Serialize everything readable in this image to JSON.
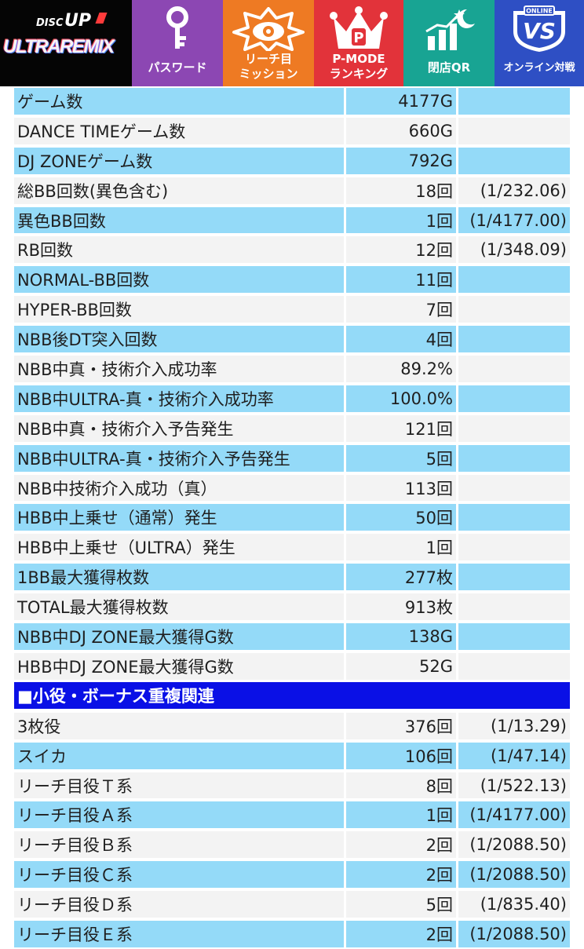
{
  "header": {
    "logo": {
      "top_text": "DISC",
      "top_text_2": "UP",
      "main_text": "ULTRAREMIX"
    },
    "nav": [
      {
        "label": "パスワード",
        "icon": "key-icon",
        "color": "#8c47b3"
      },
      {
        "label": "リーチ目\nミッション",
        "icon": "mission-badge-icon",
        "color": "#ee7a23"
      },
      {
        "label": "P-MODE\nランキング",
        "icon": "crown-icon",
        "color": "#e2333a"
      },
      {
        "label": "閉店QR",
        "icon": "chart-moon-icon",
        "color": "#18a493"
      },
      {
        "label": "オンライン対戦",
        "icon": "vs-shield-icon",
        "icon_text": "VS",
        "icon_caption": "ONLINE",
        "color": "#2e4fc4"
      }
    ]
  },
  "stats": [
    {
      "label": "ゲーム数",
      "value": "4177G",
      "prob": ""
    },
    {
      "label": "DANCE TIMEゲーム数",
      "value": "660G",
      "prob": ""
    },
    {
      "label": "DJ ZONEゲーム数",
      "value": "792G",
      "prob": ""
    },
    {
      "label": "総BB回数(異色含む)",
      "value": "18回",
      "prob": "(1/232.06)"
    },
    {
      "label": "異色BB回数",
      "value": "1回",
      "prob": "(1/4177.00)"
    },
    {
      "label": "RB回数",
      "value": "12回",
      "prob": "(1/348.09)"
    },
    {
      "label": "NORMAL-BB回数",
      "value": "11回",
      "prob": ""
    },
    {
      "label": "HYPER-BB回数",
      "value": "7回",
      "prob": ""
    },
    {
      "label": "NBB後DT突入回数",
      "value": "4回",
      "prob": ""
    },
    {
      "label": "NBB中真・技術介入成功率",
      "value": "89.2%",
      "prob": ""
    },
    {
      "label": "NBB中ULTRA-真・技術介入成功率",
      "value": "100.0%",
      "prob": ""
    },
    {
      "label": "NBB中真・技術介入予告発生",
      "value": "121回",
      "prob": ""
    },
    {
      "label": "NBB中ULTRA-真・技術介入予告発生",
      "value": "5回",
      "prob": ""
    },
    {
      "label": "NBB中技術介入成功（真）",
      "value": "113回",
      "prob": ""
    },
    {
      "label": "HBB中上乗せ（通常）発生",
      "value": "50回",
      "prob": ""
    },
    {
      "label": "HBB中上乗せ（ULTRA）発生",
      "value": "1回",
      "prob": ""
    },
    {
      "label": "1BB最大獲得枚数",
      "value": "277枚",
      "prob": ""
    },
    {
      "label": "TOTAL最大獲得枚数",
      "value": "913枚",
      "prob": ""
    },
    {
      "label": "NBB中DJ ZONE最大獲得G数",
      "value": "138G",
      "prob": ""
    },
    {
      "label": "HBB中DJ ZONE最大獲得G数",
      "value": "52G",
      "prob": ""
    }
  ],
  "section2": {
    "title": "■小役・ボーナス重複関連",
    "rows": [
      {
        "label": "3枚役",
        "value": "376回",
        "prob": "(1/13.29)"
      },
      {
        "label": "スイカ",
        "value": "106回",
        "prob": "(1/47.14)"
      },
      {
        "label": "リーチ目役Ｔ系",
        "value": "8回",
        "prob": "(1/522.13)"
      },
      {
        "label": "リーチ目役Ａ系",
        "value": "1回",
        "prob": "(1/4177.00)"
      },
      {
        "label": "リーチ目役Ｂ系",
        "value": "2回",
        "prob": "(1/2088.50)"
      },
      {
        "label": "リーチ目役Ｃ系",
        "value": "2回",
        "prob": "(1/2088.50)"
      },
      {
        "label": "リーチ目役Ｄ系",
        "value": "5回",
        "prob": "(1/835.40)"
      },
      {
        "label": "リーチ目役Ｅ系",
        "value": "2回",
        "prob": "(1/2088.50)"
      }
    ]
  }
}
